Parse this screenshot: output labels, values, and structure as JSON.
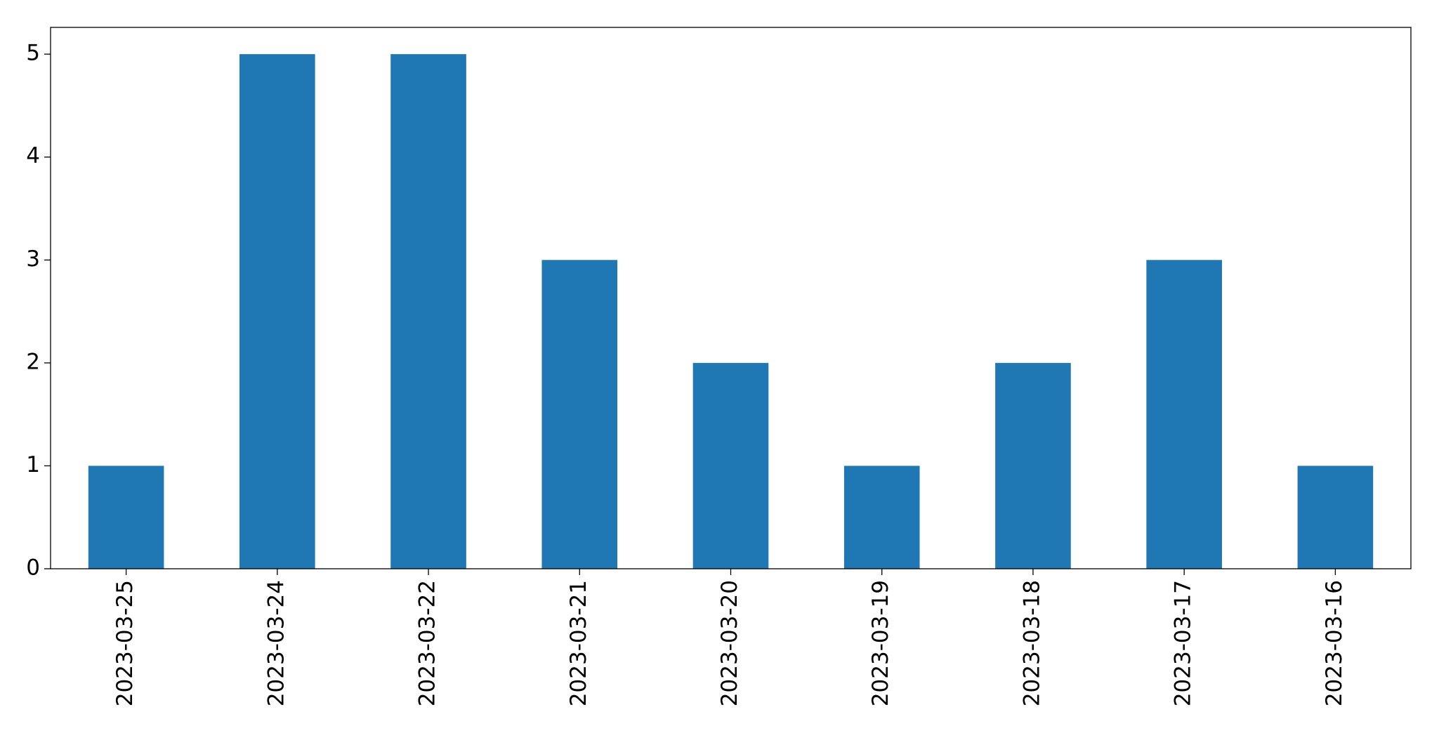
{
  "chart_data": {
    "type": "bar",
    "categories": [
      "2023-03-25",
      "2023-03-24",
      "2023-03-22",
      "2023-03-21",
      "2023-03-20",
      "2023-03-19",
      "2023-03-18",
      "2023-03-17",
      "2023-03-16"
    ],
    "values": [
      1,
      5,
      5,
      3,
      2,
      1,
      2,
      3,
      1
    ],
    "color": "#1f77b4",
    "ylim": [
      0,
      5.26
    ],
    "yticks": [
      0,
      1,
      2,
      3,
      4,
      5
    ],
    "grid": false
  }
}
